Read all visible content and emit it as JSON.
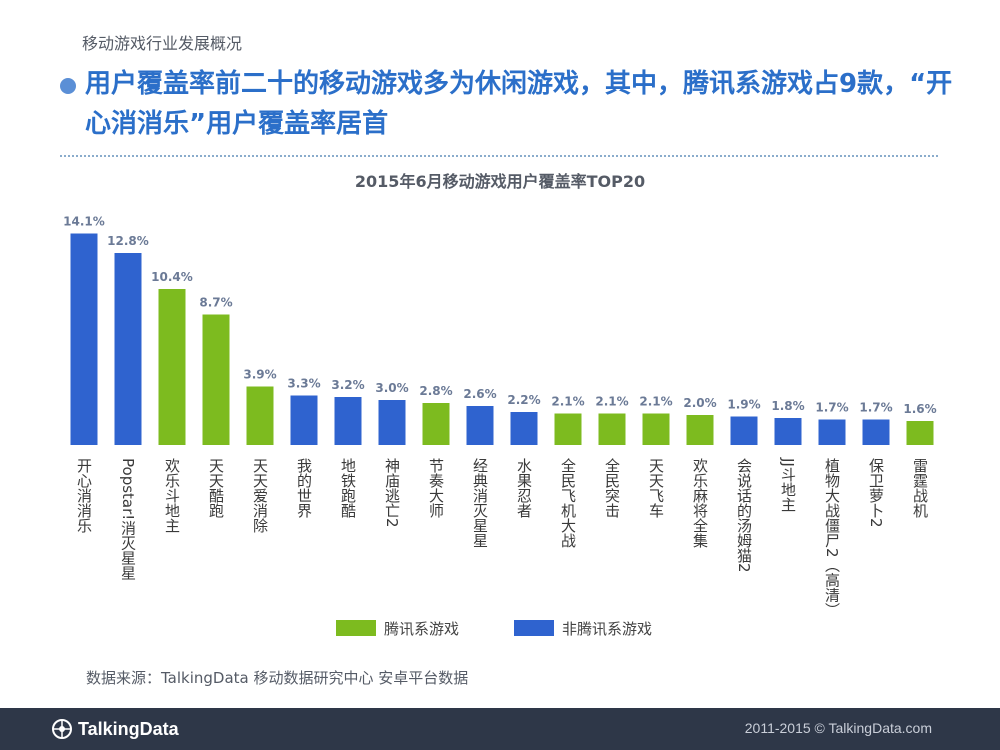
{
  "header": {
    "section_label": "移动游戏行业发展概况",
    "headline": "用户覆盖率前二十的移动游戏多为休闲游戏，其中，腾讯系游戏占9款，“开心消消乐”用户覆盖率居首"
  },
  "colors": {
    "tencent": "#7dbb1f",
    "non_tencent": "#2f63cf",
    "value_label": "#6b7a96",
    "category_label": "#3a3a3a"
  },
  "chart_data": {
    "type": "bar",
    "title": "2015年6月移动游戏用户覆盖率TOP20",
    "unit": "%",
    "ylim": [
      0,
      15
    ],
    "categories": [
      "开心消消乐",
      "Popstar!消灭星星",
      "欢乐斗地主",
      "天天酷跑",
      "天天爱消除",
      "我的世界",
      "地铁跑酷",
      "神庙逃亡2",
      "节奏大师",
      "经典消灭星星",
      "水果忍者",
      "全民飞机大战",
      "全民突击",
      "天天飞车",
      "欢乐麻将全集",
      "会说话的汤姆猫2",
      "JJ斗地主",
      "植物大战僵尸2（高清）",
      "保卫萝卜2",
      "雷霆战机"
    ],
    "values": [
      14.1,
      12.8,
      10.4,
      8.7,
      3.9,
      3.3,
      3.2,
      3.0,
      2.8,
      2.6,
      2.2,
      2.1,
      2.1,
      2.1,
      2.0,
      1.9,
      1.8,
      1.7,
      1.7,
      1.6
    ],
    "value_labels": [
      "14.1%",
      "12.8%",
      "10.4%",
      "8.7%",
      "3.9%",
      "3.3%",
      "3.2%",
      "3.0%",
      "2.8%",
      "2.6%",
      "2.2%",
      "2.1%",
      "2.1%",
      "2.1%",
      "2.0%",
      "1.9%",
      "1.8%",
      "1.7%",
      "1.7%",
      "1.6%"
    ],
    "groups": [
      "non_tencent",
      "non_tencent",
      "tencent",
      "tencent",
      "tencent",
      "non_tencent",
      "non_tencent",
      "non_tencent",
      "tencent",
      "non_tencent",
      "non_tencent",
      "tencent",
      "tencent",
      "tencent",
      "tencent",
      "non_tencent",
      "non_tencent",
      "non_tencent",
      "non_tencent",
      "tencent"
    ],
    "legend": [
      {
        "key": "tencent",
        "label": "腾讯系游戏"
      },
      {
        "key": "non_tencent",
        "label": "非腾讯系游戏"
      }
    ]
  },
  "source": "数据来源：TalkingData 移动数据研究中心 安卓平台数据",
  "footer": {
    "logo_text": "TalkingData",
    "copyright": "2011-2015 © TalkingData.com"
  }
}
